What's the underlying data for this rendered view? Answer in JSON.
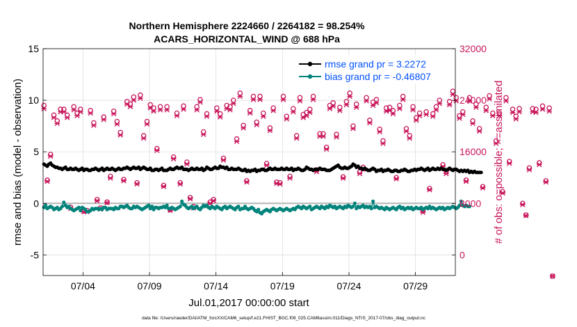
{
  "colors": {
    "rmse": "#000000",
    "bias": "#00837a",
    "obs": "#c8145a",
    "legend_text": "#0050ff",
    "zero_line": "#bbbbbb",
    "grid": "#d9d9d9"
  },
  "footer": {
    "data_file": "data file: /Users/raeder/DAI/ATM_forcXX/CAM6_setup/f.e21.FHIST_BGC.f09_025.CAM6assim.011/Diags_NTrS_2017-07/obs_diag_output.nc"
  },
  "chart_data": {
    "type": "line",
    "title": "Northern Hemisphere 2224660 / 2264182 = 98.254%",
    "subtitle": "ACARS_HORIZONTAL_WIND @ 688 hPa",
    "xlabel": "Jul.01,2017 00:00:00 start",
    "ylabel": "rmse and bias (model - observation)",
    "y2label": "# of obs: o=possible; ×=assimilated",
    "xlim": [
      1.0,
      32.0
    ],
    "ylim": [
      -7,
      15
    ],
    "y2lim": [
      -3200,
      32000
    ],
    "xticks": [
      4,
      9,
      14,
      19,
      24,
      29
    ],
    "xtick_labels": [
      "07/04",
      "07/09",
      "07/14",
      "07/19",
      "07/24",
      "07/29"
    ],
    "yticks": [
      -5,
      0,
      5,
      10,
      15
    ],
    "ytick_labels": [
      "-5",
      "0",
      "5",
      "10",
      "15"
    ],
    "y2ticks": [
      0,
      8000,
      16000,
      24000,
      32000
    ],
    "y2tick_labels": [
      "0",
      "8000",
      "16000",
      "24000",
      "32000"
    ],
    "legend": [
      {
        "name": "rmse grand pr = 3.2272",
        "series": "rmse"
      },
      {
        "name": "bias grand pr = -0.46807",
        "series": "bias"
      }
    ],
    "legend_location": "top-right",
    "series": [
      {
        "name": "rmse",
        "axis": "left",
        "x_start": 1.0625,
        "x_step": 0.125,
        "values": [
          3.8,
          3.7,
          3.6,
          3.8,
          3.9,
          3.7,
          3.6,
          3.5,
          3.5,
          3.4,
          3.4,
          3.3,
          3.4,
          3.5,
          3.3,
          3.3,
          3.4,
          3.3,
          3.3,
          3.4,
          3.3,
          3.2,
          3.3,
          3.4,
          3.2,
          3.3,
          3.3,
          3.2,
          3.2,
          3.3,
          3.3,
          3.4,
          3.3,
          3.2,
          3.3,
          3.4,
          3.2,
          3.3,
          3.4,
          3.3,
          3.3,
          3.4,
          3.3,
          3.2,
          3.3,
          3.4,
          3.3,
          3.3,
          3.4,
          3.4,
          3.5,
          3.4,
          3.3,
          3.4,
          3.5,
          3.4,
          3.4,
          3.5,
          3.3,
          3.4,
          3.5,
          3.4,
          3.3,
          3.3,
          3.4,
          3.2,
          3.2,
          3.3,
          3.3,
          3.2,
          3.3,
          3.4,
          3.2,
          3.2,
          3.2,
          3.3,
          3.4,
          3.3,
          3.3,
          3.4,
          3.5,
          3.4,
          3.4,
          3.5,
          3.3,
          3.3,
          3.3,
          3.2,
          3.3,
          3.4,
          3.3,
          3.3,
          3.4,
          3.3,
          3.3,
          3.4,
          3.2,
          3.3,
          3.5,
          3.4,
          3.3,
          3.3,
          3.4,
          3.5,
          3.4,
          3.4,
          3.6,
          3.5,
          3.5,
          3.4,
          3.5,
          3.3,
          3.3,
          3.4,
          3.3,
          3.3,
          3.3,
          3.4,
          3.3,
          3.2,
          3.2,
          3.3,
          3.1,
          3.2,
          3.1,
          3.2,
          3.2,
          3.3,
          3.1,
          3.2,
          3.2,
          3.3,
          3.3,
          3.2,
          3.2,
          3.3,
          3.4,
          3.3,
          3.3,
          3.4,
          3.3,
          3.3,
          3.3,
          3.4,
          3.3,
          3.3,
          3.4,
          3.3,
          3.3,
          3.4,
          3.2,
          3.3,
          3.3,
          3.4,
          3.3,
          3.2,
          3.2,
          3.3,
          3.5,
          3.4,
          3.3,
          3.3,
          3.2,
          3.3,
          3.3,
          3.3,
          3.4,
          3.3,
          3.3,
          3.3,
          3.2,
          3.2,
          3.2,
          3.3,
          3.4,
          3.5,
          3.6,
          3.7,
          3.5,
          3.4,
          3.4,
          3.5,
          3.4,
          3.4,
          3.5,
          3.6,
          3.8,
          3.7,
          3.5,
          3.6,
          3.4,
          3.4,
          3.3,
          3.4,
          3.3,
          3.2,
          3.2,
          3.3,
          3.4,
          3.3,
          3.1,
          3.2,
          3.2,
          3.3,
          3.1,
          3.2,
          3.2,
          3.3,
          3.2,
          3.1,
          3.1,
          3.2,
          3.2,
          3.1,
          3.1,
          3.2,
          3.2,
          3.3,
          3.2,
          3.1,
          3.1,
          3.2,
          3.2,
          3.3,
          3.2,
          3.3,
          3.3,
          3.4,
          3.3,
          3.2,
          3.3,
          3.4,
          3.2,
          3.3,
          3.4,
          3.3,
          3.3,
          3.4,
          3.3,
          3.4,
          3.3,
          3.3,
          3.2,
          3.3,
          3.4,
          3.3,
          3.2,
          3.3,
          3.3,
          3.2,
          3.1,
          3.2,
          3.1,
          3.2,
          3.1,
          3.2,
          3.0,
          3.1,
          3.0,
          3.1,
          3.0,
          3.0,
          3.0,
          3.0
        ]
      },
      {
        "name": "bias",
        "axis": "left",
        "x_start": 1.0625,
        "x_step": 0.125,
        "values": [
          -0.4,
          -0.2,
          -0.5,
          -0.4,
          -0.3,
          -0.4,
          -0.6,
          -0.5,
          -0.4,
          -0.6,
          -0.5,
          -0.3,
          0.1,
          -0.2,
          -0.4,
          -0.3,
          -0.5,
          -0.6,
          -0.7,
          -0.6,
          -0.5,
          -0.4,
          -0.7,
          -0.4,
          -0.5,
          -0.6,
          -0.8,
          -0.8,
          -0.7,
          -0.5,
          -0.6,
          -0.5,
          -0.5,
          -0.6,
          -0.5,
          -0.6,
          -0.4,
          -0.4,
          -0.6,
          -0.5,
          -0.5,
          -0.5,
          -0.6,
          -0.4,
          -0.5,
          -0.5,
          -0.3,
          -0.3,
          -0.4,
          -0.3,
          -0.2,
          -0.4,
          -0.5,
          -0.5,
          -0.3,
          -0.4,
          -0.3,
          -0.4,
          -0.5,
          -0.6,
          -0.5,
          -0.4,
          -0.3,
          -0.2,
          -0.5,
          -0.3,
          -0.6,
          -0.4,
          -0.4,
          -0.5,
          -0.4,
          -0.4,
          -0.3,
          -0.4,
          -0.2,
          -0.5,
          -0.5,
          -0.4,
          -0.5,
          -0.6,
          -0.5,
          -0.4,
          -0.3,
          0.2,
          -0.1,
          -0.2,
          -0.4,
          -0.5,
          -0.4,
          -0.3,
          -0.5,
          -0.4,
          -0.3,
          -0.5,
          -0.6,
          -0.4,
          -0.2,
          -0.3,
          -0.2,
          -0.4,
          -0.5,
          -0.3,
          -0.4,
          -0.5,
          -0.3,
          -0.4,
          -0.5,
          -0.6,
          -0.4,
          -0.3,
          -0.5,
          -0.4,
          -0.3,
          -0.4,
          -0.5,
          -0.6,
          -0.4,
          -0.3,
          -0.6,
          -0.5,
          -0.5,
          -0.3,
          -0.5,
          -0.6,
          -0.5,
          -0.4,
          -0.5,
          -0.7,
          -0.8,
          -0.6,
          -0.9,
          -1.0,
          -0.8,
          -0.7,
          -0.6,
          -0.7,
          -0.8,
          -0.6,
          -0.5,
          -0.6,
          -0.7,
          -0.6,
          -0.5,
          -0.6,
          -0.7,
          -0.6,
          -0.5,
          -0.6,
          -0.7,
          -0.6,
          -0.5,
          -0.6,
          -0.4,
          -0.3,
          -0.4,
          -0.5,
          -0.3,
          -0.4,
          -0.5,
          -0.4,
          -0.3,
          -0.6,
          -0.5,
          -0.4,
          -0.3,
          -0.4,
          -0.5,
          -0.3,
          -0.4,
          -0.5,
          -0.3,
          -0.4,
          -0.2,
          -0.3,
          -0.4,
          -0.3,
          -0.5,
          -0.4,
          -0.3,
          -0.4,
          -0.5,
          -0.3,
          -0.4,
          -0.2,
          -0.3,
          -0.4,
          -0.3,
          0.0,
          -0.5,
          -0.3,
          -0.4,
          -0.3,
          -0.2,
          -0.4,
          -0.3,
          -0.4,
          -0.3,
          -0.5,
          0.2,
          -0.4,
          -0.3,
          -0.4,
          -0.5,
          -0.4,
          -0.5,
          -0.6,
          -0.4,
          -0.5,
          -0.6,
          -0.5,
          -0.4,
          -0.5,
          -0.6,
          -0.4,
          -0.3,
          -0.5,
          -0.4,
          -0.6,
          -0.5,
          -0.4,
          -0.5,
          -0.4,
          -0.6,
          -0.5,
          -0.4,
          -0.5,
          -0.5,
          -0.4,
          -0.6,
          -0.5,
          -0.4,
          -0.5,
          -0.3,
          -0.5,
          -0.4,
          -0.5,
          -0.6,
          -0.5,
          -0.4,
          -0.5,
          -0.4,
          -0.6,
          -0.5,
          -0.4,
          -0.5,
          -0.4,
          -0.3,
          -0.4,
          -0.5,
          -0.4,
          -0.2,
          0.2,
          -0.2,
          -0.3,
          -0.2,
          -0.3,
          -0.3
        ]
      },
      {
        "name": "possible obs count",
        "axis": "right",
        "marker": "o",
        "x_start": 1.0625,
        "x_step": 0.25,
        "values": [
          23200,
          11600,
          15600,
          21700,
          20800,
          22600,
          22600,
          21700,
          7400,
          23000,
          22000,
          22600,
          6800,
          6900,
          22400,
          20500,
          8600,
          7300,
          21400,
          8200,
          12200,
          22300,
          20700,
          19000,
          11700,
          23800,
          23400,
          24500,
          11200,
          24800,
          18500,
          20700,
          23300,
          22800,
          16500,
          23000,
          10800,
          23000,
          7000,
          15200,
          22000,
          11200,
          23100,
          14400,
          8900,
          7500,
          23000,
          24100,
          19100,
          21900,
          8200,
          8600,
          22800,
          21900,
          15000,
          23200,
          23000,
          24000,
          18000,
          25100,
          20100,
          11500,
          22400,
          24600,
          20600,
          24600,
          22000,
          14200,
          19700,
          22800,
          11300,
          11200,
          24600,
          21500,
          12200,
          22700,
          18500,
          24400,
          21800,
          22100,
          22600,
          24600,
          13200,
          18800,
          18800,
          16700,
          23200,
          23600,
          18700,
          22900,
          12100,
          23800,
          25100,
          20000,
          23400,
          12900,
          13600,
          24400,
          20900,
          23700,
          24100,
          19500,
          17700,
          22800,
          22900,
          22400,
          12000,
          23200,
          24600,
          19600,
          18500,
          23000,
          21300,
          22000,
          6800,
          22200,
          10300,
          21900,
          23000,
          24000,
          14000,
          12900,
          23800,
          25400,
          24400,
          21600,
          22200,
          11600,
          24400,
          20800,
          23400,
          19600,
          10600,
          22900,
          24700,
          22000,
          17700,
          22000,
          9800,
          24400,
          14500,
          22600,
          21500,
          22700,
          8000,
          6200,
          13500,
          22700,
          22600,
          14300,
          23100,
          11500,
          22800,
          -3300
        ]
      },
      {
        "name": "assimilated obs count",
        "axis": "right",
        "marker": "x",
        "x_start": 1.0625,
        "x_step": 0.25,
        "values": [
          22700,
          11400,
          15300,
          21300,
          20400,
          22200,
          22200,
          21300,
          7200,
          22500,
          21600,
          22200,
          6700,
          6700,
          22000,
          20100,
          8400,
          7100,
          21000,
          8100,
          11900,
          21900,
          20300,
          18600,
          11500,
          23400,
          23000,
          24000,
          11000,
          24300,
          18100,
          20300,
          22800,
          22300,
          16200,
          22500,
          10600,
          22500,
          6900,
          14900,
          21600,
          11000,
          22600,
          14100,
          8700,
          7300,
          22500,
          23700,
          18700,
          21500,
          8000,
          8400,
          22300,
          21400,
          14700,
          22700,
          22500,
          23500,
          17600,
          24600,
          19700,
          11300,
          22000,
          24100,
          20200,
          24100,
          21500,
          13900,
          19300,
          22400,
          11100,
          11000,
          24100,
          21100,
          11900,
          22200,
          18100,
          23900,
          21300,
          21600,
          22100,
          24100,
          12900,
          18400,
          18400,
          16400,
          22700,
          23100,
          18300,
          22400,
          11900,
          23300,
          24600,
          19600,
          22900,
          12600,
          13300,
          23900,
          20500,
          23200,
          23600,
          19100,
          17300,
          22300,
          22400,
          21900,
          11800,
          22700,
          24100,
          19200,
          18100,
          22500,
          20900,
          21600,
          6600,
          21800,
          10100,
          21500,
          22500,
          23500,
          13700,
          12600,
          23300,
          24900,
          23900,
          21200,
          21800,
          11400,
          23900,
          20400,
          22900,
          19200,
          10400,
          22400,
          24200,
          21600,
          17300,
          21600,
          9600,
          23900,
          14200,
          22100,
          21100,
          22200,
          7800,
          6100,
          13200,
          22200,
          22100,
          14000,
          22600,
          11300,
          22300,
          -3300
        ]
      }
    ]
  }
}
